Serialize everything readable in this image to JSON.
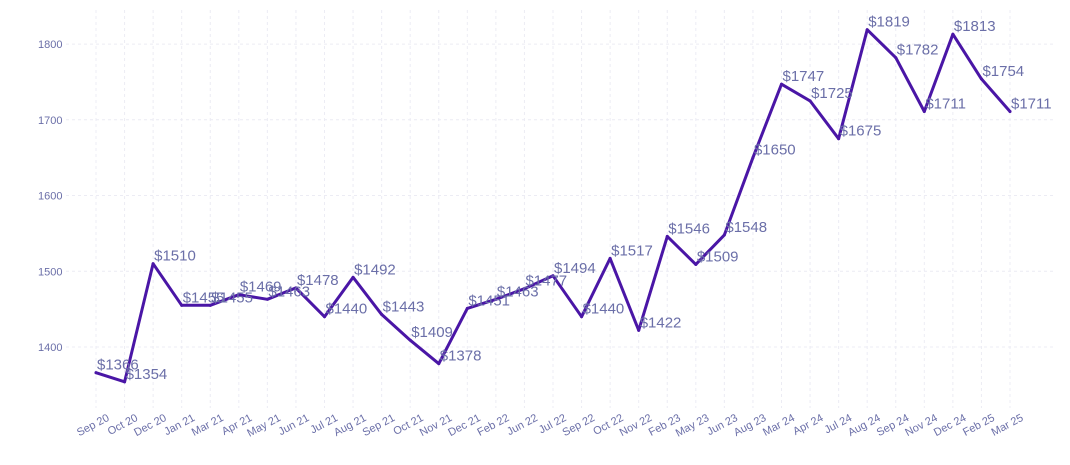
{
  "chart_data": {
    "type": "line",
    "title": "",
    "xlabel": "",
    "ylabel": "",
    "categories": [
      "Sep 20",
      "Oct 20",
      "Dec 20",
      "Jan 21",
      "Mar 21",
      "Apr 21",
      "May 21",
      "Jun 21",
      "Jul 21",
      "Aug 21",
      "Sep 21",
      "Oct 21",
      "Nov 21",
      "Dec 21",
      "Feb 22",
      "Jun 22",
      "Jul 22",
      "Sep 22",
      "Oct 22",
      "Nov 22",
      "Feb 23",
      "May 23",
      "Jun 23",
      "Aug 23",
      "Mar 24",
      "Apr 24",
      "Jul 24",
      "Aug 24",
      "Sep 24",
      "Nov 24",
      "Dec 24",
      "Feb 25",
      "Mar 25"
    ],
    "series": [
      {
        "values": [
          1366,
          1354,
          1510,
          1455,
          1455,
          1469,
          1463,
          1478,
          1440,
          1492,
          1443,
          1409,
          1378,
          1451,
          1463,
          1477,
          1494,
          1440,
          1517,
          1422,
          1546,
          1509,
          1548,
          1650,
          1747,
          1725,
          1675,
          1819,
          1782,
          1711,
          1813,
          1754,
          1711
        ],
        "labels": [
          "$1366",
          "$1354",
          "$1510",
          "$1455",
          "$1455",
          "$1469",
          "$1463",
          "$1478",
          "$1440",
          "$1492",
          "$1443",
          "$1409",
          "$1378",
          "$1451",
          "$1463",
          "$1477",
          "$1494",
          "$1440",
          "$1517",
          "$1422",
          "$1546",
          "$1509",
          "$1548",
          "$1650",
          "$1747",
          "$1725",
          "$1675",
          "$1819",
          "$1782",
          "$1711",
          "$1813",
          "$1754",
          "$1711"
        ]
      }
    ],
    "ylim": [
      1330,
      1845
    ],
    "yticks": [
      1400,
      1500,
      1600,
      1700,
      1800
    ],
    "grid": true,
    "legend": "none",
    "colors": {
      "line": "#4a16a6",
      "labels": "#6b6fa8",
      "ticks": "#6b6fa8",
      "grid": "#ececf4"
    }
  }
}
